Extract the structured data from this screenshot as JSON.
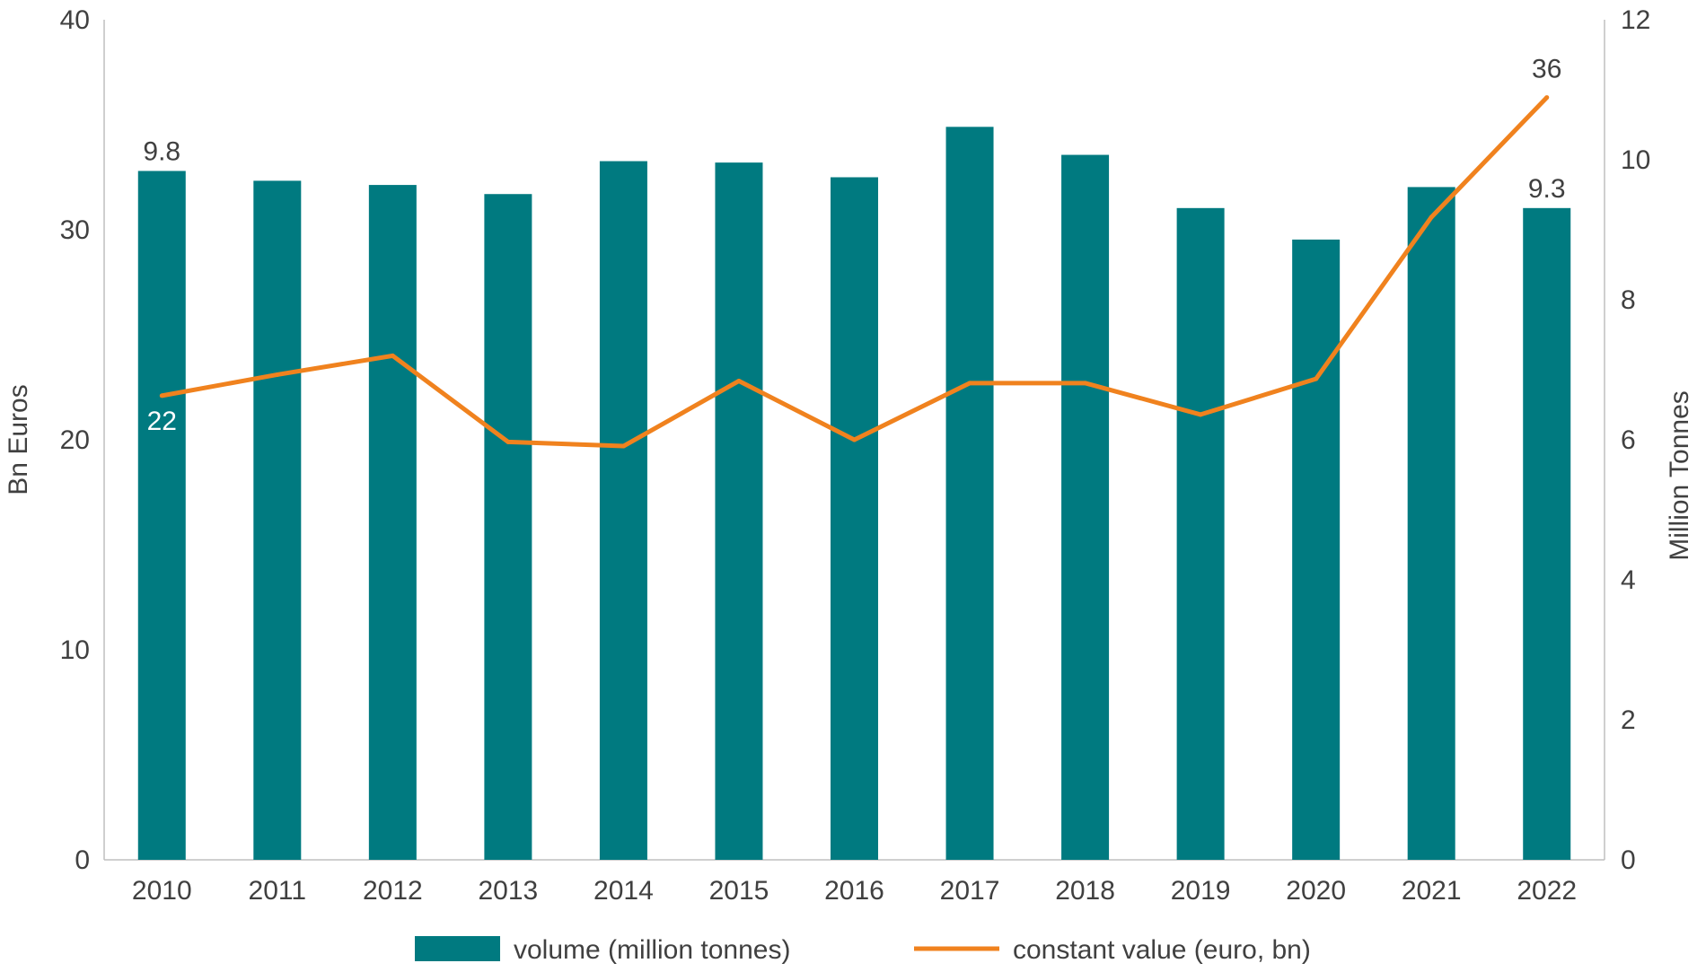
{
  "chart_data": {
    "type": "bar+line",
    "categories": [
      "2010",
      "2011",
      "2012",
      "2013",
      "2014",
      "2015",
      "2016",
      "2017",
      "2018",
      "2019",
      "2020",
      "2021",
      "2022"
    ],
    "series": [
      {
        "name": "volume (million tonnes)",
        "type": "bar",
        "axis": "right",
        "color": "#007A80",
        "values": [
          9.84,
          9.7,
          9.64,
          9.51,
          9.98,
          9.96,
          9.75,
          10.47,
          10.07,
          9.31,
          8.86,
          9.61,
          9.31
        ]
      },
      {
        "name": "constant value (euro, bn)",
        "type": "line",
        "axis": "left",
        "color": "#F0821E",
        "values": [
          22.1,
          23.1,
          24.0,
          19.9,
          19.7,
          22.8,
          20.0,
          22.7,
          22.7,
          21.2,
          22.9,
          30.6,
          36.3
        ]
      }
    ],
    "data_labels": [
      {
        "series": 0,
        "index": 0,
        "text": "9.8"
      },
      {
        "series": 0,
        "index": 12,
        "text": "9.3"
      },
      {
        "series": 1,
        "index": 0,
        "text": "22"
      },
      {
        "series": 1,
        "index": 12,
        "text": "36"
      }
    ],
    "ylabel_left": "Bn Euros",
    "ylabel_right": "Million Tonnes",
    "ylim_left": [
      0,
      40
    ],
    "ylim_right": [
      0,
      12
    ],
    "yticks_left": [
      "0",
      "10",
      "20",
      "30",
      "40"
    ],
    "yticks_right": [
      "0",
      "2",
      "4",
      "6",
      "8",
      "10",
      "12"
    ],
    "grid": false,
    "legend_position": "bottom"
  }
}
